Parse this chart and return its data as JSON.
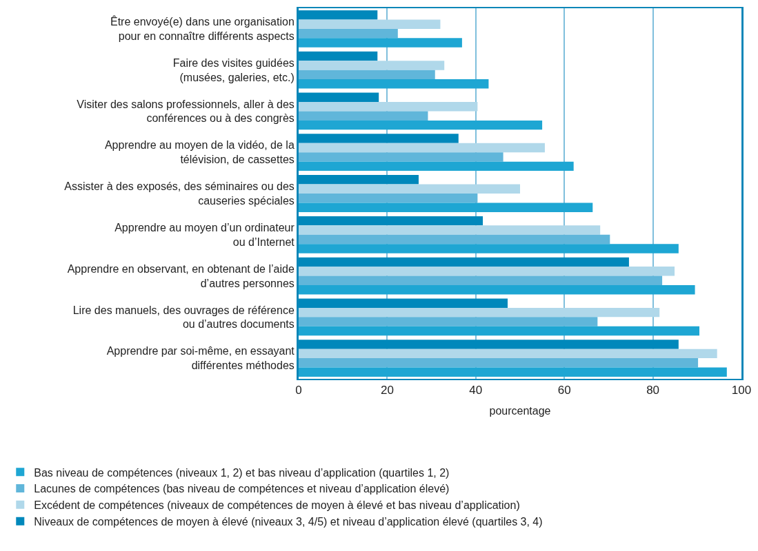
{
  "chart_data": {
    "type": "bar",
    "orientation": "horizontal",
    "xlabel": "pourcentage",
    "categories": [
      "Être envoyé(e) dans une organisation\npour en connaître différents aspects",
      "Faire des visites guidées\n(musées, galeries, etc.)",
      "Visiter des salons professionnels, aller à des\nconférences ou à des congrès",
      "Apprendre au moyen de la vidéo, de la\ntélévision, de cassettes",
      "Assister à des exposés, des séminaires ou des\ncauseries spéciales",
      "Apprendre au moyen d’un ordinateur\nou d’Internet",
      "Apprendre en observant, en obtenant de l’aide\nd’autres personnes",
      "Lire des manuels, des ouvrages de référence\nou d’autres documents",
      "Apprendre par soi-même, en essayant\ndifférentes méthodes"
    ],
    "series": [
      {
        "name": "Bas niveau de compétences (niveaux 1, 2) et bas niveau d’application (quartiles 1, 2)",
        "color": "#1ea6d3",
        "values": [
          36.9,
          42.9,
          55.0,
          62.1,
          66.4,
          85.8,
          89.5,
          90.5,
          96.7
        ]
      },
      {
        "name": "Lacunes de compétences (bas niveau de compétences et niveau d’application élevé)",
        "color": "#60b6da",
        "values": [
          22.4,
          30.8,
          29.2,
          46.2,
          40.4,
          70.3,
          82.1,
          67.5,
          90.2
        ]
      },
      {
        "name": "Excédent de compétences (niveaux de compétences de moyen à élevé et bas niveau d’application)",
        "color": "#b0d8ea",
        "values": [
          32.0,
          32.9,
          40.4,
          55.6,
          50.0,
          68.1,
          84.9,
          81.5,
          94.5
        ]
      },
      {
        "name": "Niveaux de compétences de moyen à élevé (niveaux 3, 4/5) et niveau d’application élevé (quartiles 3, 4)",
        "color": "#0088bb",
        "values": [
          17.8,
          17.8,
          18.1,
          36.1,
          27.1,
          41.6,
          74.6,
          47.2,
          85.8
        ]
      }
    ],
    "xlim": [
      0,
      100
    ],
    "xticks": [
      0,
      20,
      40,
      60,
      80,
      100
    ],
    "grid": "x",
    "legend": "bottom"
  }
}
